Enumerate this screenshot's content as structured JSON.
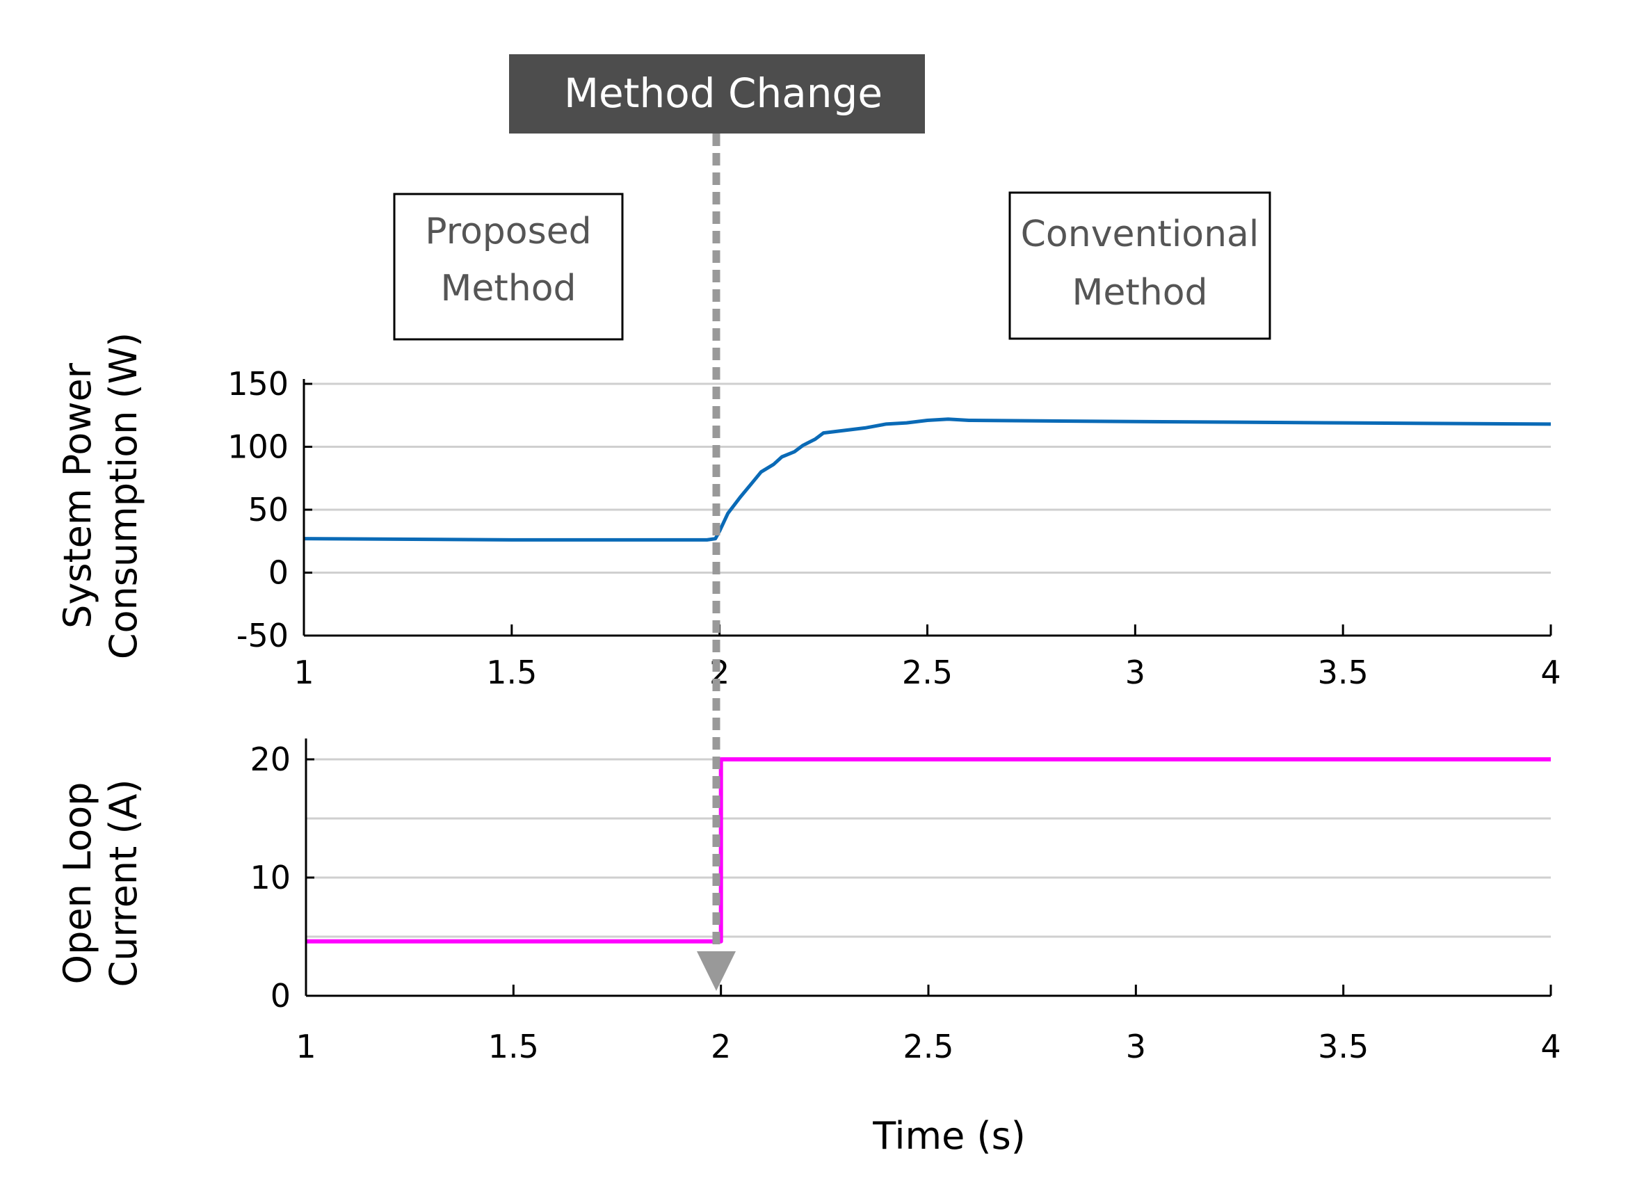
{
  "annotations": {
    "banner": "Method Change",
    "left_box": [
      "Proposed",
      "Method"
    ],
    "right_box": [
      "Conventional",
      "Method"
    ],
    "colors": {
      "banner_bg": "#4d4d4d",
      "divider": "#999999",
      "box_text": "#555555"
    }
  },
  "shared_xlabel": "Time (s)",
  "chart_data": [
    {
      "type": "line",
      "ylabel": [
        "System Power",
        "Consumption (W)"
      ],
      "xlim": [
        1,
        4
      ],
      "ylim": [
        -50,
        150
      ],
      "xticks": [
        "1",
        "1.5",
        "2",
        "2.5",
        "3",
        "3.5",
        "4"
      ],
      "yticks": [
        "150",
        "100",
        "50",
        "0",
        "-50"
      ],
      "grid": true,
      "series": [
        {
          "color": "#0a6ab6",
          "x": [
            1.0,
            1.5,
            1.97,
            1.99,
            2.0,
            2.02,
            2.05,
            2.08,
            2.1,
            2.13,
            2.15,
            2.18,
            2.2,
            2.23,
            2.25,
            2.3,
            2.35,
            2.4,
            2.45,
            2.5,
            2.55,
            2.6,
            3.0,
            3.5,
            4.0
          ],
          "y": [
            27,
            26,
            26,
            27,
            33,
            47,
            60,
            72,
            80,
            86,
            92,
            96,
            101,
            106,
            111,
            113,
            115,
            118,
            119,
            121,
            122,
            121,
            120,
            119,
            118
          ]
        }
      ]
    },
    {
      "type": "line",
      "ylabel": [
        "Open Loop",
        "Current (A)"
      ],
      "xlim": [
        1,
        4
      ],
      "ylim": [
        0,
        22
      ],
      "xticks": [
        "1",
        "1.5",
        "2",
        "2.5",
        "3",
        "3.5",
        "4"
      ],
      "yticks": [
        "20",
        "10",
        "0"
      ],
      "grid": true,
      "series": [
        {
          "color": "#ff00ff",
          "x": [
            1.0,
            2.0,
            2.0,
            4.0
          ],
          "y": [
            4.6,
            4.6,
            20,
            20
          ]
        }
      ]
    }
  ]
}
